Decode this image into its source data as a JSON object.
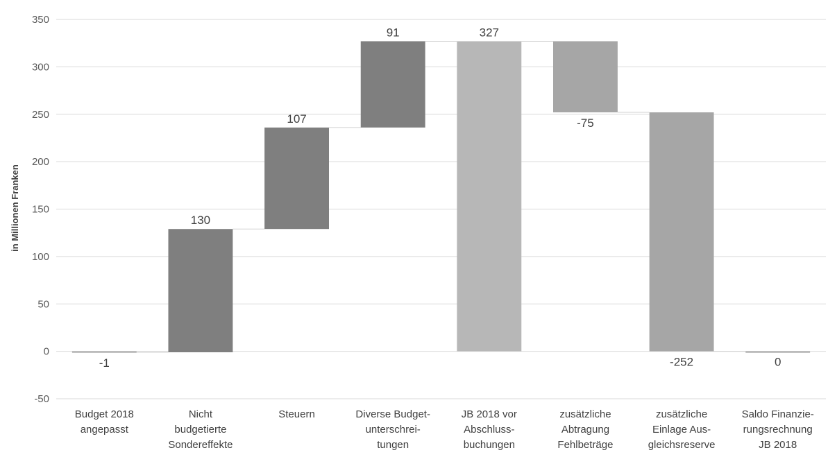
{
  "chart_data": {
    "type": "bar",
    "subtype": "waterfall",
    "title": "",
    "xlabel": "",
    "ylabel": "in Millionen Franken",
    "ylim": [
      -50,
      350
    ],
    "yticks": [
      -50,
      0,
      50,
      100,
      150,
      200,
      250,
      300,
      350
    ],
    "grid": true,
    "legend": "none",
    "categories": [
      [
        "Budget 2018",
        "angepasst"
      ],
      [
        "Nicht",
        "budgetierte",
        "Sondereffekte"
      ],
      [
        "Steuern"
      ],
      [
        "Diverse Budget-",
        "unterschrei-",
        "tungen"
      ],
      [
        "JB 2018 vor",
        "Abschluss-",
        "buchungen"
      ],
      [
        "zusätzliche",
        "Abtragung",
        "Fehlbeträge"
      ],
      [
        "zusätzliche",
        "Einlage Aus-",
        "gleichsreserve"
      ],
      [
        "Saldo Finanzie-",
        "rungsrechnung",
        "JB 2018"
      ]
    ],
    "bars": [
      {
        "start": 0,
        "end": -1,
        "label": "-1",
        "color": "#a6a6a6"
      },
      {
        "start": -1,
        "end": 129,
        "label": "130",
        "color": "#7f7f7f"
      },
      {
        "start": 129,
        "end": 236,
        "label": "107",
        "color": "#7f7f7f"
      },
      {
        "start": 236,
        "end": 327,
        "label": "91",
        "color": "#7f7f7f"
      },
      {
        "start": 0,
        "end": 327,
        "label": "327",
        "color": "#b7b7b7"
      },
      {
        "start": 327,
        "end": 252,
        "label": "-75",
        "color": "#a6a6a6"
      },
      {
        "start": 252,
        "end": 0,
        "label": "-252",
        "color": "#a6a6a6"
      },
      {
        "start": 0,
        "end": 0,
        "label": "0",
        "color": "#a6a6a6"
      }
    ]
  }
}
